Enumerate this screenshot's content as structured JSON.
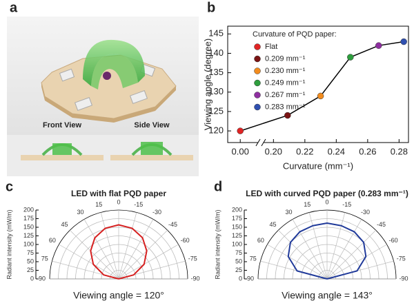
{
  "panel_a": {
    "label": "a",
    "captions": [
      "Front View",
      "Side View"
    ]
  },
  "chart_data": [
    {
      "type": "line",
      "label": "b",
      "x": [
        0.0,
        0.209,
        0.23,
        0.249,
        0.267,
        0.283
      ],
      "values": [
        120,
        124,
        129,
        139,
        142,
        143
      ],
      "point_colors": [
        "#e02424",
        "#7a1414",
        "#f28c1e",
        "#2e9e3e",
        "#8e2fa0",
        "#3050b0"
      ],
      "line_color": "#000000",
      "xlabel": "Curvature (mm⁻¹)",
      "ylabel": "Viewing angle (degree)",
      "xlim": [
        -0.008,
        0.286
      ],
      "xbreak": [
        0.01,
        0.195
      ],
      "xticks": [
        {
          "value": 0,
          "label": "0.00"
        },
        {
          "value": 0.2,
          "label": "0.20"
        },
        {
          "value": 0.22,
          "label": "0.22"
        },
        {
          "value": 0.24,
          "label": "0.24"
        },
        {
          "value": 0.26,
          "label": "0.26"
        },
        {
          "value": 0.28,
          "label": "0.28"
        }
      ],
      "ylim": [
        117,
        147
      ],
      "yticks": [
        120,
        125,
        130,
        135,
        140,
        145
      ],
      "legend_title": "Curvature of PQD paper:",
      "legend_labels": [
        "Flat",
        "0.209 mm⁻¹",
        "0.230 mm⁻¹",
        "0.249 mm⁻¹",
        "0.267 mm⁻¹",
        "0.283 mm⁻¹"
      ],
      "legend": "upper left"
    },
    {
      "type": "polar",
      "label": "c",
      "title": "LED with flat PQD paper",
      "theta": [
        -90,
        -75,
        -60,
        -45,
        -30,
        -15,
        0,
        15,
        30,
        45,
        60,
        75,
        90
      ],
      "values": [
        0,
        45,
        85,
        115,
        138,
        152,
        157,
        152,
        138,
        115,
        85,
        45,
        0
      ],
      "color": "#d62020",
      "rlim": [
        0,
        200
      ],
      "rticks": [
        0,
        25,
        50,
        75,
        100,
        125,
        150,
        175,
        200
      ],
      "thetaticks": [
        -90,
        -75,
        -60,
        -45,
        -30,
        -15,
        0,
        15,
        30,
        45,
        60,
        75,
        90
      ],
      "rlabel": "Radiant intensity (mW/m)",
      "annotation": "Viewing angle = 120°"
    },
    {
      "type": "polar",
      "label": "d",
      "title": "LED with curved PQD paper (0.283 mm⁻¹)",
      "theta": [
        -90,
        -75,
        -60,
        -45,
        -30,
        -15,
        0,
        15,
        30,
        45,
        60,
        75,
        90
      ],
      "values": [
        0,
        90,
        130,
        150,
        158,
        160,
        162,
        160,
        158,
        150,
        130,
        90,
        0
      ],
      "color": "#203a9a",
      "rlim": [
        0,
        200
      ],
      "rticks": [
        0,
        25,
        50,
        75,
        100,
        125,
        150,
        175,
        200
      ],
      "thetaticks": [
        -90,
        -75,
        -60,
        -45,
        -30,
        -15,
        0,
        15,
        30,
        45,
        60,
        75,
        90
      ],
      "rlabel": "Radiant intensity (mW/m)",
      "annotation": "Viewing angle = 143°"
    }
  ]
}
